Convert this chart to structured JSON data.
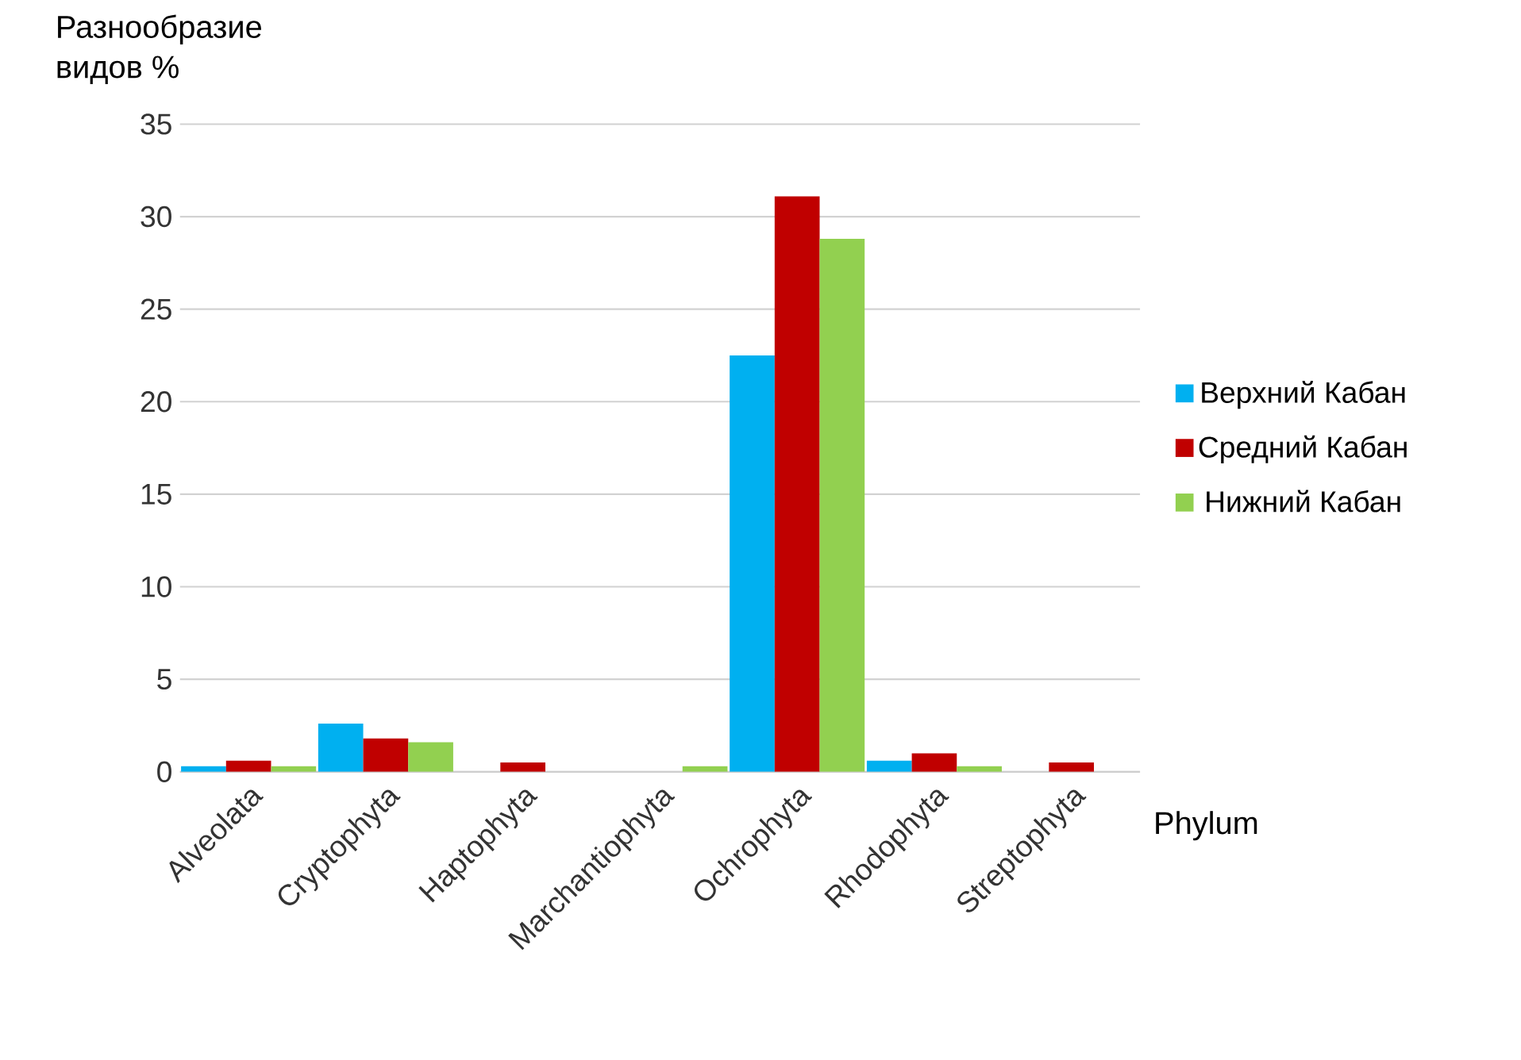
{
  "chart_data": {
    "type": "bar",
    "ylabel": "Разнообразие видов %",
    "xlabel": "Phylum",
    "categories": [
      "Alveolata",
      "Cryptophyta",
      "Haptophyta",
      "Marchantiophyta",
      "Ochrophyta",
      "Rhodophyta",
      "Streptophyta"
    ],
    "series": [
      {
        "name": "Верхний Кабан",
        "color": "#00b0f0",
        "values": [
          0.3,
          2.6,
          0,
          0,
          22.5,
          0.6,
          0
        ]
      },
      {
        "name": "Средний Кабан",
        "color": "#c00000",
        "values": [
          0.6,
          1.8,
          0.5,
          0,
          31.1,
          1.0,
          0.5
        ]
      },
      {
        "name": "Нижний Кабан",
        "color": "#92d050",
        "values": [
          0.3,
          1.6,
          0,
          0.3,
          28.8,
          0.3,
          0
        ]
      }
    ],
    "ylim": [
      0,
      35
    ],
    "yticks": [
      0,
      5,
      10,
      15,
      20,
      25,
      30,
      35
    ],
    "grid": "y",
    "legend": "right"
  }
}
